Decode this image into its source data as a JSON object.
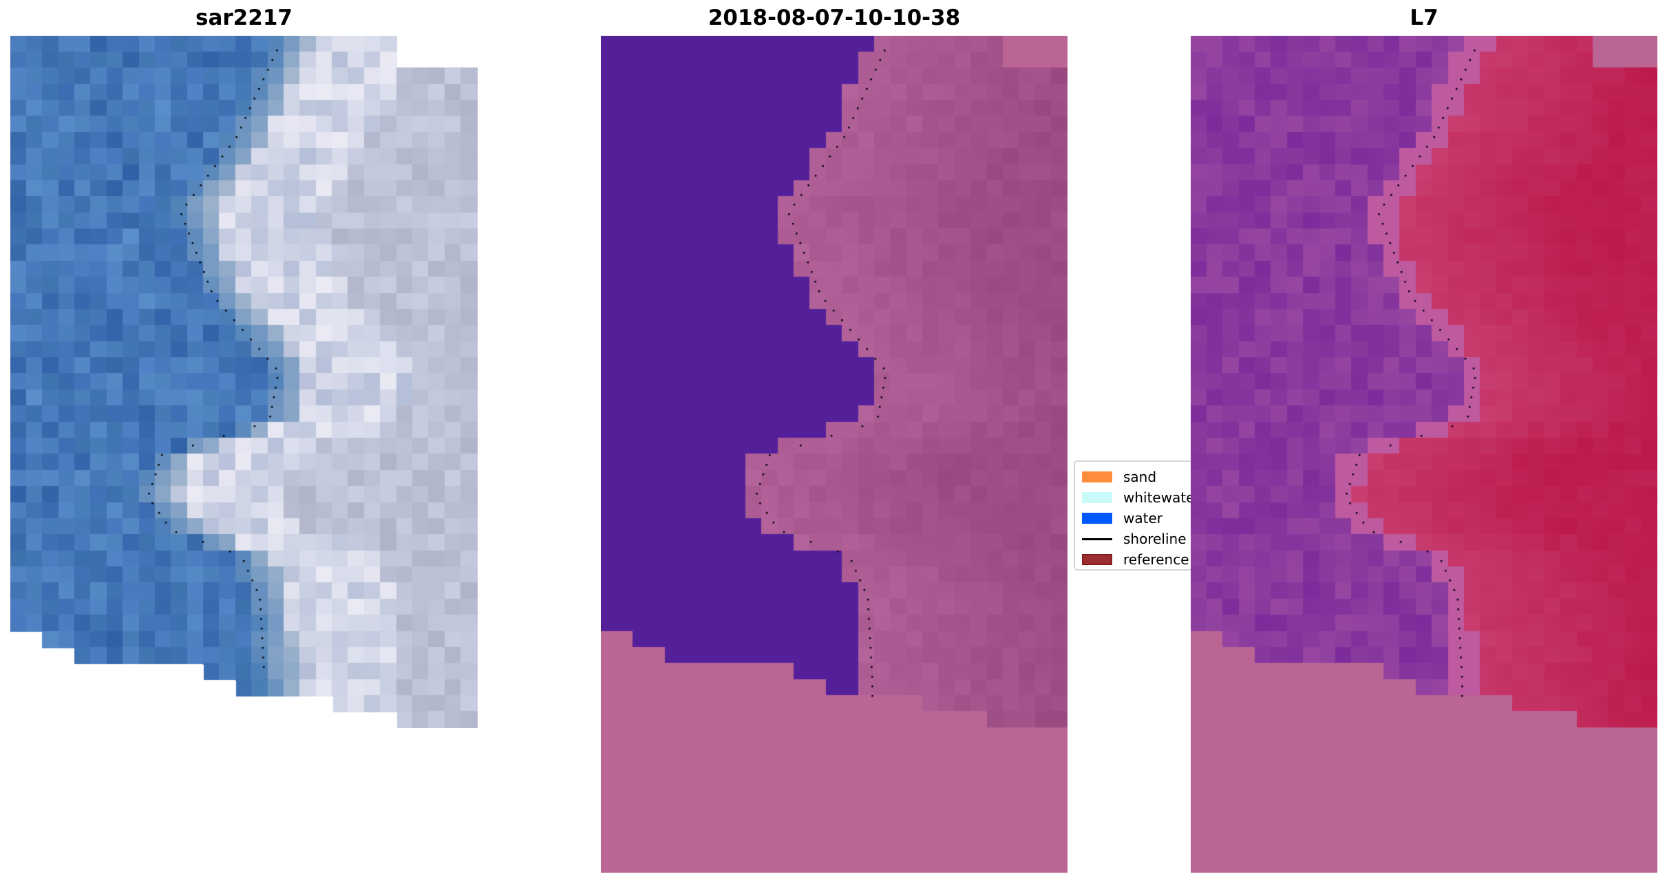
{
  "panels": [
    {
      "title": "sar2217"
    },
    {
      "title": "2018-08-07-10-10-38"
    },
    {
      "title": "L7"
    }
  ],
  "legend": {
    "items": [
      {
        "label": "sand",
        "type": "patch",
        "color": "#ff8c3a"
      },
      {
        "label": "whitewater",
        "type": "patch",
        "color": "#c8fafa"
      },
      {
        "label": "water",
        "type": "patch",
        "color": "#0058ff"
      },
      {
        "label": "shoreline",
        "type": "line",
        "color": "#000000"
      },
      {
        "label": "reference",
        "type": "patch",
        "color": "#9b2d30"
      }
    ]
  },
  "colors": {
    "water_class": "#54209a",
    "nodata": "#ba6594"
  }
}
